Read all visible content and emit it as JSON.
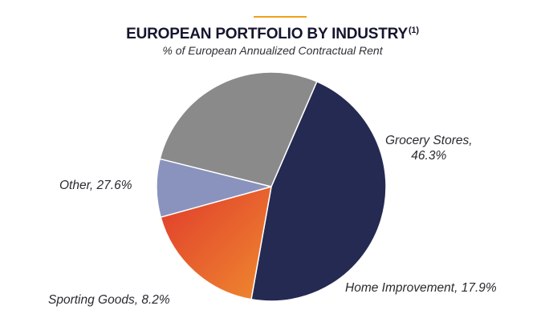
{
  "chart_data": {
    "type": "pie",
    "title": "EUROPEAN PORTFOLIO BY INDUSTRY",
    "title_note": "(1)",
    "subtitle": "% of European Annualized Contractual Rent",
    "slices": [
      {
        "label": "Grocery Stores",
        "value": 46.3,
        "label_line1": "Grocery Stores,",
        "label_line2": "46.3%",
        "color": "#252a52"
      },
      {
        "label": "Home Improvement",
        "value": 17.9,
        "label_line1": "Home Improvement, 17.9%",
        "color_start": "#e03a2c",
        "color_end": "#ef8a2f"
      },
      {
        "label": "Sporting Goods",
        "value": 8.2,
        "label_line1": "Sporting Goods, 8.2%",
        "color": "#8a93bd"
      },
      {
        "label": "Other",
        "value": 27.6,
        "label_line1": "Other, 27.6%",
        "color": "#8a8a8a"
      }
    ],
    "start_angle_deg": -66.6,
    "direction": "clockwise"
  },
  "colors": {
    "accent": "#f0a11a",
    "title_text": "#15152e"
  }
}
